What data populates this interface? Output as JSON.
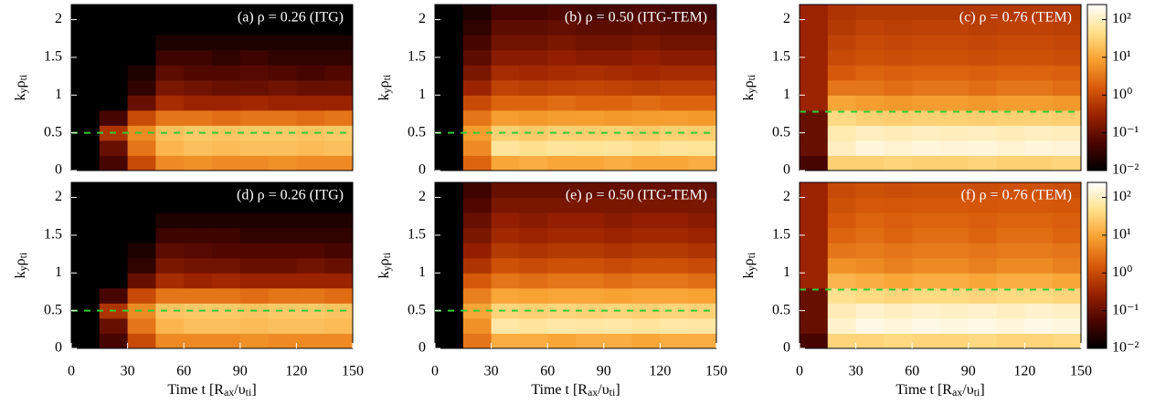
{
  "chart_data": [
    {
      "type": "heatmap",
      "title": "(a) ρ = 0.26 (ITG)",
      "ylabel": [
        "k",
        "y",
        "ρ",
        "ti"
      ],
      "xlim": [
        0,
        150
      ],
      "ylim": [
        0,
        2.2
      ],
      "yticks": [
        0,
        0.5,
        1,
        1.5,
        2
      ],
      "xbins": [
        0,
        15,
        30,
        45,
        60,
        75,
        90,
        105,
        120,
        135,
        150
      ],
      "ybins": [
        0,
        0.2,
        0.4,
        0.6,
        0.8,
        1,
        1.2,
        1.4,
        1.6,
        1.8,
        2,
        2.2
      ],
      "hline": 0.5,
      "hline_color": "#33cc33",
      "zlim": [
        0.01,
        250
      ],
      "log_color": true,
      "colormap": [
        "#000000",
        "#4a0500",
        "#9a2200",
        "#d85a0a",
        "#f7a030",
        "#ffe08a",
        "#ffffff"
      ],
      "colorbar": false,
      "z": [
        [
          0.01,
          0.05,
          1,
          5,
          6,
          5,
          5,
          6,
          5,
          5
        ],
        [
          0.01,
          0.1,
          3,
          15,
          20,
          18,
          20,
          20,
          18,
          20
        ],
        [
          0.01,
          0.5,
          5,
          20,
          25,
          22,
          25,
          25,
          22,
          25
        ],
        [
          0.01,
          0.05,
          1,
          3,
          3,
          2.5,
          3,
          3,
          2.5,
          3
        ],
        [
          0.01,
          0.01,
          0.1,
          0.4,
          0.3,
          0.3,
          0.35,
          0.3,
          0.3,
          0.3
        ],
        [
          0.01,
          0.01,
          0.03,
          0.15,
          0.12,
          0.1,
          0.1,
          0.12,
          0.1,
          0.1
        ],
        [
          0.01,
          0.01,
          0.02,
          0.08,
          0.06,
          0.06,
          0.07,
          0.06,
          0.05,
          0.06
        ],
        [
          0.01,
          0.01,
          0.01,
          0.04,
          0.04,
          0.03,
          0.04,
          0.03,
          0.03,
          0.03
        ],
        [
          0.01,
          0.01,
          0.01,
          0.02,
          0.02,
          0.02,
          0.02,
          0.02,
          0.02,
          0.02
        ],
        [
          0.01,
          0.01,
          0.01,
          0.01,
          0.01,
          0.01,
          0.01,
          0.01,
          0.01,
          0.01
        ],
        [
          0.01,
          0.01,
          0.01,
          0.01,
          0.01,
          0.01,
          0.01,
          0.01,
          0.01,
          0.01
        ]
      ]
    },
    {
      "type": "heatmap",
      "title": "(b) ρ = 0.50 (ITG-TEM)",
      "ylabel": [
        "k",
        "y",
        "ρ",
        "ti"
      ],
      "xlim": [
        0,
        150
      ],
      "ylim": [
        0,
        2.2
      ],
      "yticks": [
        0,
        0.5,
        1,
        1.5,
        2
      ],
      "xbins": [
        0,
        15,
        30,
        45,
        60,
        75,
        90,
        105,
        120,
        135,
        150
      ],
      "ybins": [
        0,
        0.2,
        0.4,
        0.6,
        0.8,
        1,
        1.2,
        1.4,
        1.6,
        1.8,
        2,
        2.2
      ],
      "hline": 0.5,
      "hline_color": "#33cc33",
      "zlim": [
        0.01,
        250
      ],
      "log_color": true,
      "colormap": [
        "#000000",
        "#4a0500",
        "#9a2200",
        "#d85a0a",
        "#f7a030",
        "#ffe08a",
        "#ffffff"
      ],
      "colorbar": false,
      "z": [
        [
          0.01,
          2,
          10,
          12,
          10,
          10,
          12,
          10,
          10,
          12
        ],
        [
          0.01,
          5,
          60,
          50,
          60,
          55,
          60,
          50,
          60,
          55
        ],
        [
          0.01,
          8,
          30,
          25,
          30,
          28,
          30,
          25,
          30,
          28
        ],
        [
          0.01,
          3,
          8,
          7,
          8,
          8,
          7,
          8,
          8,
          7
        ],
        [
          0.01,
          1,
          2,
          2,
          2.5,
          2,
          2,
          2.5,
          2,
          2
        ],
        [
          0.01,
          0.3,
          0.8,
          0.7,
          0.8,
          0.9,
          0.8,
          0.7,
          0.8,
          0.8
        ],
        [
          0.01,
          0.15,
          0.4,
          0.35,
          0.4,
          0.45,
          0.4,
          0.35,
          0.4,
          0.4
        ],
        [
          0.01,
          0.08,
          0.2,
          0.2,
          0.25,
          0.2,
          0.2,
          0.25,
          0.2,
          0.2
        ],
        [
          0.01,
          0.05,
          0.12,
          0.12,
          0.15,
          0.12,
          0.12,
          0.15,
          0.12,
          0.12
        ],
        [
          0.01,
          0.03,
          0.08,
          0.08,
          0.09,
          0.08,
          0.08,
          0.09,
          0.08,
          0.08
        ],
        [
          0.01,
          0.02,
          0.05,
          0.05,
          0.06,
          0.05,
          0.05,
          0.06,
          0.05,
          0.05
        ]
      ]
    },
    {
      "type": "heatmap",
      "title": "(c) ρ = 0.76 (TEM)",
      "ylabel": [
        "k",
        "y",
        "ρ",
        "ti"
      ],
      "xlim": [
        0,
        150
      ],
      "ylim": [
        0,
        2.2
      ],
      "yticks": [
        0,
        0.5,
        1,
        1.5,
        2
      ],
      "xbins": [
        0,
        15,
        30,
        45,
        60,
        75,
        90,
        105,
        120,
        135,
        150
      ],
      "ybins": [
        0,
        0.2,
        0.4,
        0.6,
        0.8,
        1,
        1.2,
        1.4,
        1.6,
        1.8,
        2,
        2.2
      ],
      "hline": 0.78,
      "hline_color": "#33cc33",
      "zlim": [
        0.01,
        250
      ],
      "log_color": true,
      "colormap": [
        "#000000",
        "#4a0500",
        "#9a2200",
        "#d85a0a",
        "#f7a030",
        "#ffe08a",
        "#ffffff"
      ],
      "colorbar": true,
      "zticks": [
        {
          "value": 0.01,
          "label": "10⁻²"
        },
        {
          "value": 0.1,
          "label": "10⁻¹"
        },
        {
          "value": 1,
          "label": "10⁰"
        },
        {
          "value": 10,
          "label": "10¹"
        },
        {
          "value": 100,
          "label": "10²"
        }
      ],
      "z": [
        [
          0.05,
          30,
          30,
          35,
          30,
          30,
          35,
          30,
          30,
          35
        ],
        [
          0.1,
          100,
          150,
          130,
          150,
          140,
          150,
          130,
          150,
          140
        ],
        [
          0.1,
          80,
          100,
          90,
          100,
          95,
          100,
          90,
          100,
          95
        ],
        [
          0.1,
          40,
          30,
          28,
          30,
          30,
          28,
          30,
          30,
          28
        ],
        [
          0.3,
          10,
          8,
          7,
          8,
          8,
          7,
          8,
          8,
          7
        ],
        [
          0.3,
          3,
          3,
          2.5,
          3,
          3,
          2.5,
          3,
          3,
          2.5
        ],
        [
          0.3,
          1.5,
          2,
          1.8,
          2,
          2,
          1.8,
          2,
          2,
          1.8
        ],
        [
          0.3,
          1,
          1.2,
          1.1,
          1.2,
          1.2,
          1.1,
          1.2,
          1.2,
          1.1
        ],
        [
          0.3,
          0.8,
          1,
          0.9,
          1,
          1,
          0.9,
          1,
          1,
          0.9
        ],
        [
          0.3,
          0.6,
          0.8,
          0.7,
          0.8,
          0.8,
          0.7,
          0.8,
          0.8,
          0.7
        ],
        [
          0.3,
          0.5,
          0.6,
          0.6,
          0.6,
          0.6,
          0.6,
          0.6,
          0.6,
          0.6
        ]
      ]
    },
    {
      "type": "heatmap",
      "title": "(d) ρ = 0.26 (ITG)",
      "ylabel": [
        "k",
        "y",
        "ρ",
        "ti"
      ],
      "xlabel": [
        "Time t [R",
        "ax",
        "/υ",
        "ti",
        "]"
      ],
      "xlim": [
        0,
        150
      ],
      "ylim": [
        0,
        2.2
      ],
      "xticks": [
        0,
        30,
        60,
        90,
        120,
        150
      ],
      "yticks": [
        0,
        0.5,
        1,
        1.5,
        2
      ],
      "xbins": [
        0,
        15,
        30,
        45,
        60,
        75,
        90,
        105,
        120,
        135,
        150
      ],
      "ybins": [
        0,
        0.2,
        0.4,
        0.6,
        0.8,
        1,
        1.2,
        1.4,
        1.6,
        1.8,
        2,
        2.2
      ],
      "hline": 0.5,
      "hline_color": "#33cc33",
      "zlim": [
        0.01,
        250
      ],
      "log_color": true,
      "colormap": [
        "#000000",
        "#4a0500",
        "#9a2200",
        "#d85a0a",
        "#f7a030",
        "#ffe08a",
        "#ffffff"
      ],
      "colorbar": false,
      "z": [
        [
          0.01,
          0.05,
          1,
          5,
          5,
          5,
          6,
          5,
          5,
          5
        ],
        [
          0.01,
          0.1,
          3,
          15,
          20,
          20,
          18,
          20,
          20,
          18
        ],
        [
          0.01,
          0.5,
          5,
          22,
          25,
          25,
          22,
          25,
          25,
          22
        ],
        [
          0.01,
          0.05,
          1,
          3,
          3,
          3,
          2.5,
          3,
          3,
          2.5
        ],
        [
          0.01,
          0.01,
          0.1,
          0.4,
          0.3,
          0.35,
          0.3,
          0.3,
          0.3,
          0.3
        ],
        [
          0.01,
          0.01,
          0.03,
          0.15,
          0.12,
          0.12,
          0.1,
          0.1,
          0.12,
          0.1
        ],
        [
          0.01,
          0.01,
          0.02,
          0.08,
          0.07,
          0.06,
          0.06,
          0.06,
          0.06,
          0.05
        ],
        [
          0.01,
          0.01,
          0.01,
          0.04,
          0.04,
          0.04,
          0.03,
          0.03,
          0.03,
          0.03
        ],
        [
          0.01,
          0.01,
          0.01,
          0.02,
          0.02,
          0.02,
          0.02,
          0.02,
          0.02,
          0.02
        ],
        [
          0.01,
          0.01,
          0.01,
          0.01,
          0.01,
          0.01,
          0.01,
          0.01,
          0.01,
          0.01
        ],
        [
          0.01,
          0.01,
          0.01,
          0.01,
          0.01,
          0.01,
          0.01,
          0.01,
          0.01,
          0.01
        ]
      ]
    },
    {
      "type": "heatmap",
      "title": "(e) ρ = 0.50 (ITG-TEM)",
      "ylabel": [
        "k",
        "y",
        "ρ",
        "ti"
      ],
      "xlabel": [
        "Time t [R",
        "ax",
        "/υ",
        "ti",
        "]"
      ],
      "xlim": [
        0,
        150
      ],
      "ylim": [
        0,
        2.2
      ],
      "xticks": [
        0,
        30,
        60,
        90,
        120,
        150
      ],
      "yticks": [
        0,
        0.5,
        1,
        1.5,
        2
      ],
      "xbins": [
        0,
        15,
        30,
        45,
        60,
        75,
        90,
        105,
        120,
        135,
        150
      ],
      "ybins": [
        0,
        0.2,
        0.4,
        0.6,
        0.8,
        1,
        1.2,
        1.4,
        1.6,
        1.8,
        2,
        2.2
      ],
      "hline": 0.5,
      "hline_color": "#33cc33",
      "zlim": [
        0.01,
        250
      ],
      "log_color": true,
      "colormap": [
        "#000000",
        "#4a0500",
        "#9a2200",
        "#d85a0a",
        "#f7a030",
        "#ffe08a",
        "#ffffff"
      ],
      "colorbar": false,
      "z": [
        [
          0.01,
          3,
          12,
          12,
          10,
          12,
          12,
          10,
          12,
          12
        ],
        [
          0.01,
          6,
          70,
          60,
          70,
          65,
          70,
          60,
          70,
          65
        ],
        [
          0.01,
          10,
          35,
          30,
          35,
          32,
          35,
          30,
          35,
          32
        ],
        [
          0.01,
          4,
          10,
          9,
          10,
          10,
          9,
          10,
          10,
          9
        ],
        [
          0.01,
          1.5,
          3,
          2.5,
          3,
          3,
          2.5,
          3,
          3,
          2.5
        ],
        [
          0.01,
          0.5,
          1.2,
          1,
          1.2,
          1.2,
          1,
          1.2,
          1.2,
          1
        ],
        [
          0.01,
          0.25,
          0.6,
          0.5,
          0.6,
          0.6,
          0.5,
          0.6,
          0.6,
          0.5
        ],
        [
          0.01,
          0.15,
          0.35,
          0.3,
          0.35,
          0.35,
          0.3,
          0.35,
          0.35,
          0.3
        ],
        [
          0.01,
          0.1,
          0.25,
          0.2,
          0.25,
          0.25,
          0.2,
          0.25,
          0.25,
          0.2
        ],
        [
          0.01,
          0.06,
          0.15,
          0.15,
          0.15,
          0.15,
          0.15,
          0.15,
          0.15,
          0.15
        ],
        [
          0.01,
          0.04,
          0.1,
          0.1,
          0.1,
          0.1,
          0.1,
          0.1,
          0.1,
          0.1
        ]
      ]
    },
    {
      "type": "heatmap",
      "title": "(f) ρ = 0.76 (TEM)",
      "ylabel": [
        "k",
        "y",
        "ρ",
        "ti"
      ],
      "xlabel": [
        "Time t [R",
        "ax",
        "/υ",
        "ti",
        "]"
      ],
      "xlim": [
        0,
        150
      ],
      "ylim": [
        0,
        2.2
      ],
      "xticks": [
        0,
        30,
        60,
        90,
        120,
        150
      ],
      "yticks": [
        0,
        0.5,
        1,
        1.5,
        2
      ],
      "xbins": [
        0,
        15,
        30,
        45,
        60,
        75,
        90,
        105,
        120,
        135,
        150
      ],
      "ybins": [
        0,
        0.2,
        0.4,
        0.6,
        0.8,
        1,
        1.2,
        1.4,
        1.6,
        1.8,
        2,
        2.2
      ],
      "hline": 0.78,
      "hline_color": "#33cc33",
      "zlim": [
        0.01,
        250
      ],
      "log_color": true,
      "colormap": [
        "#000000",
        "#4a0500",
        "#9a2200",
        "#d85a0a",
        "#f7a030",
        "#ffe08a",
        "#ffffff"
      ],
      "colorbar": true,
      "zticks": [
        {
          "value": 0.01,
          "label": "10⁻²"
        },
        {
          "value": 0.1,
          "label": "10⁻¹"
        },
        {
          "value": 1,
          "label": "10⁰"
        },
        {
          "value": 10,
          "label": "10¹"
        },
        {
          "value": 100,
          "label": "10²"
        }
      ],
      "z": [
        [
          0.05,
          35,
          35,
          40,
          35,
          35,
          40,
          35,
          35,
          40
        ],
        [
          0.1,
          120,
          170,
          150,
          170,
          160,
          170,
          150,
          170,
          160
        ],
        [
          0.1,
          90,
          120,
          100,
          120,
          110,
          120,
          100,
          120,
          110
        ],
        [
          0.1,
          50,
          40,
          35,
          40,
          40,
          35,
          40,
          40,
          35
        ],
        [
          0.3,
          15,
          12,
          10,
          12,
          12,
          10,
          12,
          12,
          10
        ],
        [
          0.3,
          6,
          5,
          4,
          5,
          5,
          4,
          5,
          5,
          4
        ],
        [
          0.3,
          3,
          3.5,
          3,
          3.5,
          3.5,
          3,
          3.5,
          3.5,
          3
        ],
        [
          0.3,
          2,
          2.5,
          2,
          2.5,
          2.5,
          2,
          2.5,
          2.5,
          2
        ],
        [
          0.3,
          1.5,
          2,
          1.8,
          2,
          2,
          1.8,
          2,
          2,
          1.8
        ],
        [
          0.3,
          1.2,
          1.5,
          1.4,
          1.5,
          1.5,
          1.4,
          1.5,
          1.5,
          1.4
        ],
        [
          0.3,
          1,
          1.2,
          1.1,
          1.2,
          1.2,
          1.1,
          1.2,
          1.2,
          1.1
        ]
      ]
    }
  ]
}
